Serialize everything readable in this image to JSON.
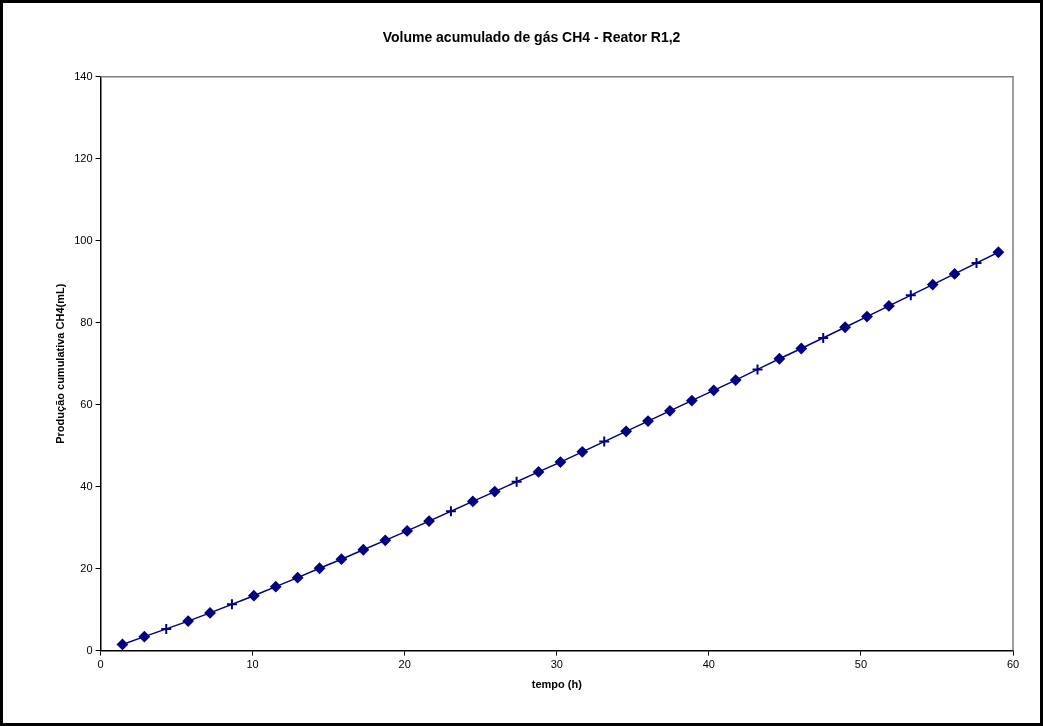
{
  "chart_data": {
    "type": "line",
    "title": "Volume acumulado de gás CH4 - Reator R1,2",
    "xlabel": "tempo (h)",
    "ylabel": "Produção cumulativa CH4(mL)",
    "x": [
      1.44,
      2.88,
      4.32,
      5.76,
      7.2,
      8.64,
      10.08,
      11.52,
      12.96,
      14.4,
      15.84,
      17.28,
      18.72,
      20.16,
      21.6,
      23.04,
      24.48,
      25.92,
      27.36,
      28.8,
      30.24,
      31.68,
      33.12,
      34.56,
      36.0,
      37.44,
      38.88,
      40.32,
      41.76,
      43.2,
      44.64,
      46.08,
      47.52,
      48.96,
      50.4,
      51.84,
      53.28,
      54.72,
      56.16,
      57.6,
      59.04
    ],
    "series": [
      {
        "marker": "diamond",
        "color": "#000080",
        "values": [
          1.5,
          3.4,
          null,
          7.2,
          9.2,
          null,
          13.4,
          15.6,
          17.8,
          20.1,
          22.3,
          24.6,
          26.9,
          29.2,
          31.6,
          null,
          36.4,
          38.8,
          null,
          43.6,
          46.0,
          48.5,
          null,
          53.5,
          56.0,
          58.5,
          61.0,
          63.5,
          66.0,
          null,
          71.2,
          73.7,
          null,
          78.9,
          81.5,
          84.1,
          null,
          89.3,
          91.9,
          null,
          97.2
        ]
      },
      {
        "type": "scatter",
        "marker": "cross",
        "color": "#000080",
        "values": [
          null,
          null,
          5.3,
          null,
          null,
          11.3,
          null,
          null,
          null,
          null,
          null,
          null,
          null,
          null,
          null,
          34.0,
          null,
          null,
          41.2,
          null,
          null,
          null,
          51.0,
          null,
          null,
          null,
          null,
          null,
          null,
          68.6,
          null,
          null,
          76.3,
          null,
          null,
          null,
          86.7,
          null,
          null,
          94.6,
          null
        ]
      }
    ],
    "xlim": [
      0,
      60
    ],
    "xticks": [
      0,
      10,
      20,
      30,
      40,
      50,
      60
    ],
    "ylim": [
      0,
      140
    ],
    "yticks": [
      0,
      20,
      40,
      60,
      80,
      100,
      120,
      140
    ],
    "grid": false,
    "legend": false,
    "line_style": "solid"
  }
}
